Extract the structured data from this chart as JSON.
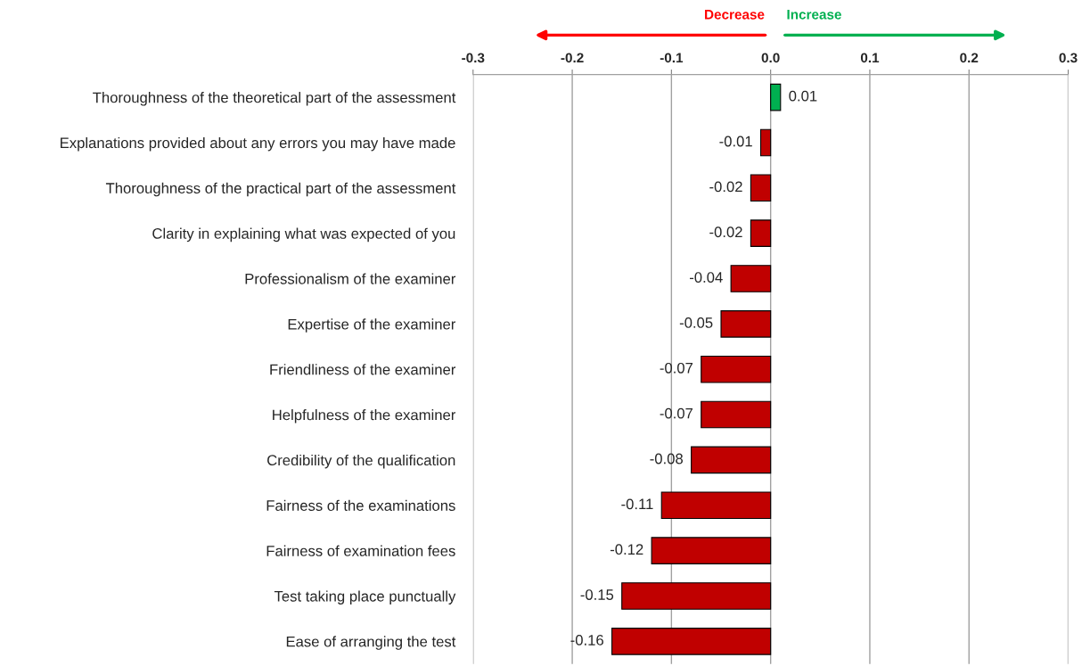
{
  "chart_data": {
    "type": "bar",
    "orientation": "horizontal",
    "categories": [
      "Thoroughness of the theoretical part of the assessment",
      "Explanations provided about any errors you may have made",
      "Thoroughness of the practical part of the assessment",
      "Clarity in explaining what was expected of you",
      "Professionalism of the examiner",
      "Expertise of the examiner",
      "Friendliness of the examiner",
      "Helpfulness of the examiner",
      "Credibility of the qualification",
      "Fairness of the examinations",
      "Fairness of examination fees",
      "Test taking place punctually",
      "Ease of arranging the test"
    ],
    "values": [
      0.01,
      -0.01,
      -0.02,
      -0.02,
      -0.04,
      -0.05,
      -0.07,
      -0.07,
      -0.08,
      -0.11,
      -0.12,
      -0.15,
      -0.16
    ],
    "colors": [
      "#00b050",
      "#c00000",
      "#c00000",
      "#c00000",
      "#c00000",
      "#c00000",
      "#c00000",
      "#c00000",
      "#c00000",
      "#c00000",
      "#c00000",
      "#c00000",
      "#c00000"
    ],
    "xlim": [
      -0.3,
      0.3
    ],
    "xticks": [
      -0.3,
      -0.2,
      -0.1,
      {
        "value": 0,
        "label": "0.0"
      },
      0.1,
      0.2,
      0.3
    ],
    "grid": "x",
    "data_labels": true,
    "annotations": [
      {
        "text": "Decrease"
      },
      {
        "text": "Increase"
      }
    ]
  }
}
